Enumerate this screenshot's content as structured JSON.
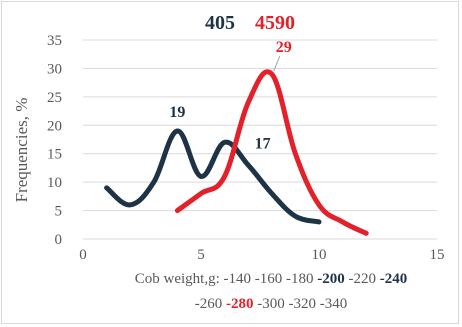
{
  "chart_data": {
    "type": "line",
    "xlabel_parts_line1": [
      {
        "text": "Cob weight,g: -140 -160 -180 ",
        "bold": false,
        "color": "#595959"
      },
      {
        "text": "-200",
        "bold": true,
        "color": "#1f3347"
      },
      {
        "text": " -220 ",
        "bold": false,
        "color": "#595959"
      },
      {
        "text": "-240",
        "bold": true,
        "color": "#1f3347"
      }
    ],
    "xlabel_parts_line2": [
      {
        "text": "-260 ",
        "bold": false,
        "color": "#595959"
      },
      {
        "text": "-280",
        "bold": true,
        "color": "#e3212b"
      },
      {
        "text": " -300 -320 -340",
        "bold": false,
        "color": "#595959"
      }
    ],
    "ylabel": "Frequencies, %",
    "xlim": [
      0,
      15
    ],
    "ylim": [
      0,
      35
    ],
    "xticks": [
      0,
      5,
      10,
      15
    ],
    "yticks": [
      0,
      5,
      10,
      15,
      20,
      25,
      30,
      35
    ],
    "grid": "horizontal",
    "series": [
      {
        "name": "405",
        "color": "#1f3347",
        "x": [
          1,
          2,
          3,
          4,
          5,
          6,
          7,
          8,
          9,
          10
        ],
        "y": [
          9,
          6,
          10,
          19,
          11,
          17,
          13,
          8,
          4,
          3
        ]
      },
      {
        "name": "4590",
        "color": "#e3212b",
        "x": [
          4,
          5,
          6,
          7,
          8,
          9,
          10,
          11,
          12
        ],
        "y": [
          5,
          8,
          11,
          24,
          29,
          15,
          6,
          3,
          1
        ]
      }
    ],
    "annotations": [
      {
        "text": "19",
        "series": 0,
        "x": 4,
        "y": 19
      },
      {
        "text": "17",
        "series": 0,
        "x": 6,
        "y": 17
      },
      {
        "text": "29",
        "series": 1,
        "x": 8,
        "y": 29
      }
    ]
  }
}
